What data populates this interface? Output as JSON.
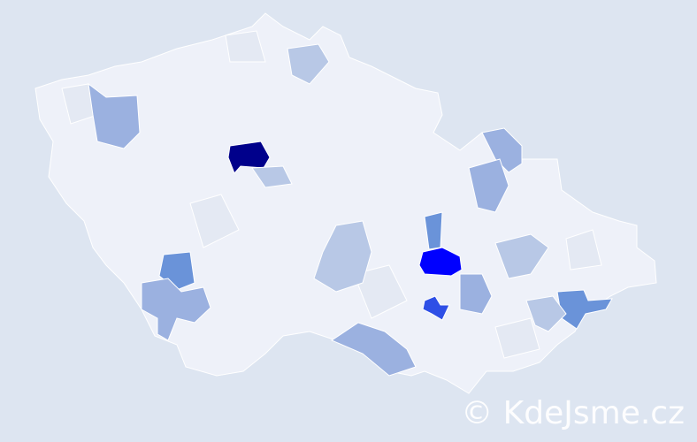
{
  "watermark": "© KdeJsme.cz",
  "colors": {
    "background": "#dde5f1",
    "base_district": "#eef1f9",
    "border": "#ffffff",
    "scale": [
      "#e1e6f0",
      "#b8c8e6",
      "#9bb1e0",
      "#7b9ddc",
      "#6a93d9",
      "#2e4fe6",
      "#0000ff",
      "#00008b"
    ]
  },
  "highlighted_districts": [
    {
      "level": 7,
      "color": "#00008b"
    },
    {
      "level": 6,
      "color": "#0000ff"
    },
    {
      "level": 5,
      "color": "#2e4fe6"
    },
    {
      "level": 4,
      "color": "#6a93d9"
    },
    {
      "level": 4,
      "color": "#6a93d9"
    },
    {
      "level": 4,
      "color": "#6a93d9"
    },
    {
      "level": 3,
      "color": "#9bb1e0"
    },
    {
      "level": 3,
      "color": "#9bb1e0"
    },
    {
      "level": 3,
      "color": "#9bb1e0"
    },
    {
      "level": 3,
      "color": "#9bb1e0"
    },
    {
      "level": 3,
      "color": "#9bb1e0"
    },
    {
      "level": 3,
      "color": "#9bb1e0"
    },
    {
      "level": 2,
      "color": "#b8c8e6"
    },
    {
      "level": 2,
      "color": "#b8c8e6"
    },
    {
      "level": 2,
      "color": "#b8c8e6"
    },
    {
      "level": 2,
      "color": "#b8c8e6"
    },
    {
      "level": 2,
      "color": "#b8c8e6"
    }
  ]
}
